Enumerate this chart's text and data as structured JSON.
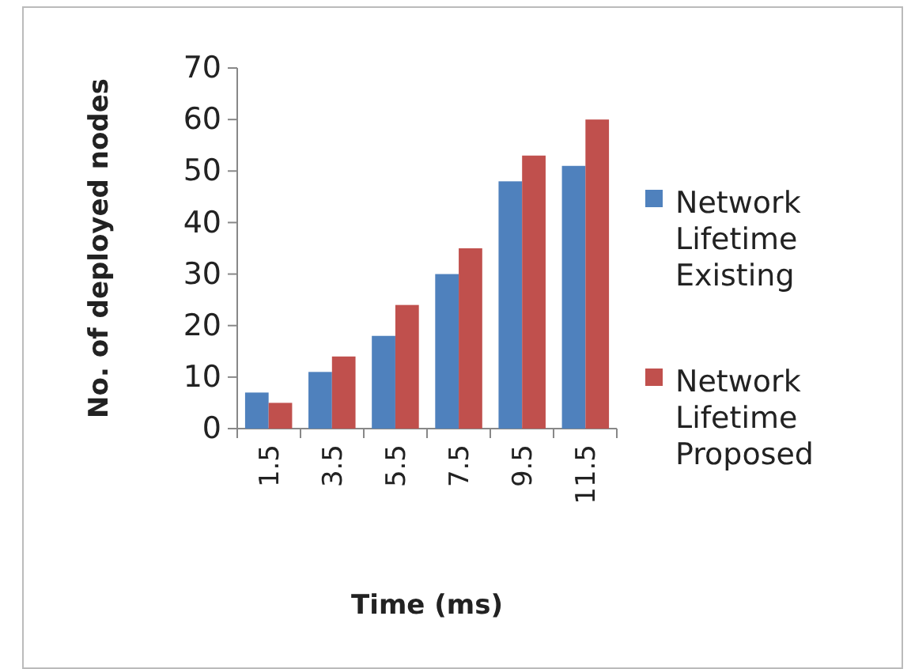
{
  "chart_data": {
    "type": "bar",
    "xlabel": "Time (ms)",
    "ylabel": "No. of deployed nodes",
    "categories": [
      "1.5",
      "3.5",
      "5.5",
      "7.5",
      "9.5",
      "11.5"
    ],
    "series": [
      {
        "name": "Network Lifetime Existing",
        "color": "#4f81bd",
        "values": [
          7,
          11,
          18,
          30,
          48,
          51
        ]
      },
      {
        "name": "Network Lifetime Proposed",
        "color": "#c0504d",
        "values": [
          5,
          14,
          24,
          35,
          53,
          60
        ]
      }
    ],
    "ylim": [
      0,
      70
    ],
    "yticks": [
      0,
      10,
      20,
      30,
      40,
      50,
      60,
      70
    ],
    "grid": false,
    "legend": "right"
  }
}
